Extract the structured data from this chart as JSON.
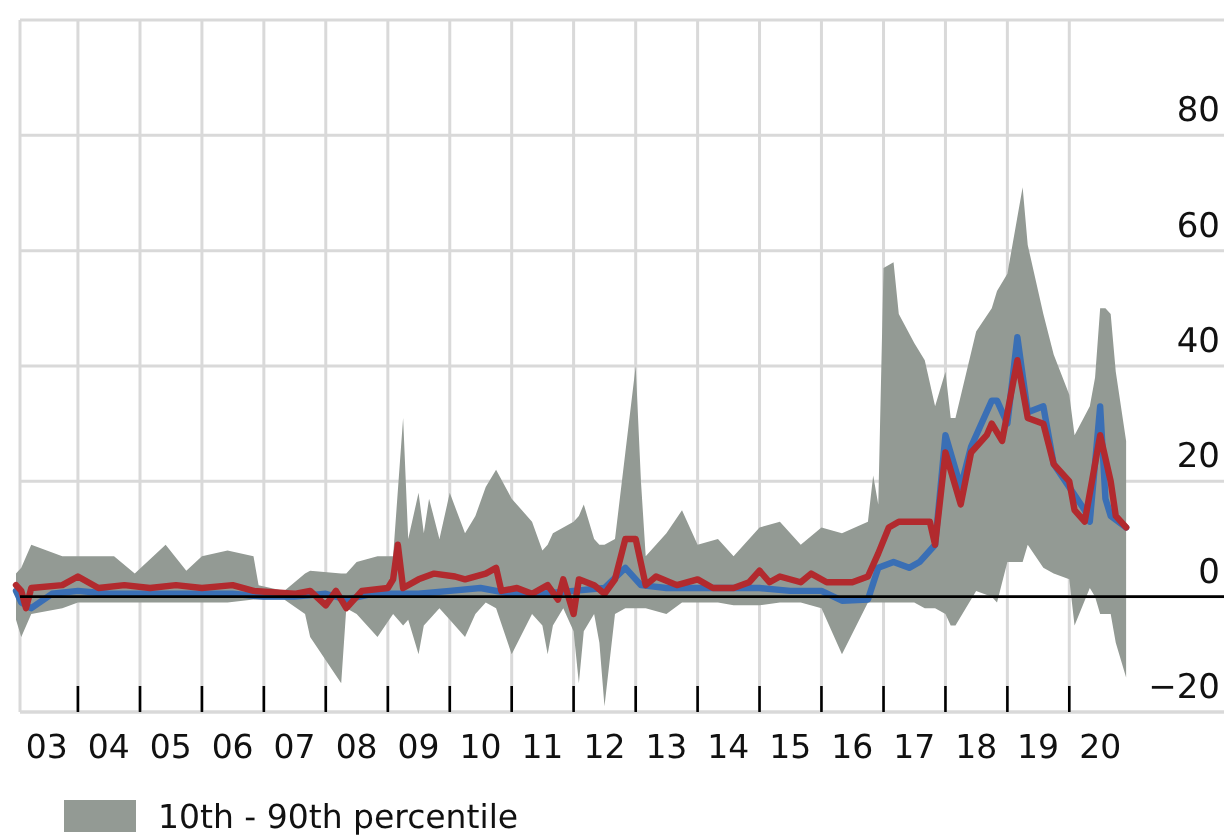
{
  "chart_data": {
    "type": "line",
    "xlim": [
      "2003-01",
      "2022-07"
    ],
    "ylim": [
      -20,
      100
    ],
    "xticks": [
      {
        "value": "2003-07",
        "label": "03"
      },
      {
        "value": "2004-01",
        "label": null
      },
      {
        "value": "2004-07",
        "label": "04"
      },
      {
        "value": "2005-01",
        "label": null
      },
      {
        "value": "2005-07",
        "label": "05"
      },
      {
        "value": "2006-01",
        "label": null
      },
      {
        "value": "2006-07",
        "label": "06"
      },
      {
        "value": "2007-01",
        "label": null
      },
      {
        "value": "2007-07",
        "label": "07"
      },
      {
        "value": "2008-01",
        "label": null
      },
      {
        "value": "2008-07",
        "label": "08"
      },
      {
        "value": "2009-01",
        "label": null
      },
      {
        "value": "2009-07",
        "label": "09"
      },
      {
        "value": "2010-01",
        "label": null
      },
      {
        "value": "2010-07",
        "label": "10"
      },
      {
        "value": "2011-01",
        "label": null
      },
      {
        "value": "2011-07",
        "label": "11"
      },
      {
        "value": "2012-01",
        "label": null
      },
      {
        "value": "2012-07",
        "label": "12"
      },
      {
        "value": "2013-01",
        "label": null
      },
      {
        "value": "2013-07",
        "label": "13"
      },
      {
        "value": "2014-01",
        "label": null
      },
      {
        "value": "2014-07",
        "label": "14"
      },
      {
        "value": "2015-01",
        "label": null
      },
      {
        "value": "2015-07",
        "label": "15"
      },
      {
        "value": "2016-01",
        "label": null
      },
      {
        "value": "2016-07",
        "label": "16"
      },
      {
        "value": "2017-01",
        "label": null
      },
      {
        "value": "2017-07",
        "label": "17"
      },
      {
        "value": "2018-01",
        "label": null
      },
      {
        "value": "2018-07",
        "label": "18"
      },
      {
        "value": "2019-01",
        "label": null
      },
      {
        "value": "2019-07",
        "label": "19"
      },
      {
        "value": "2020-01",
        "label": null
      },
      {
        "value": "2020-07",
        "label": "20"
      }
    ],
    "yticks": [
      {
        "value": -20,
        "label": "−20"
      },
      0,
      20,
      40,
      60,
      80
    ],
    "grid": true,
    "legend": "bottom",
    "line_style": "solid",
    "ref_lines": [
      {
        "axis": "y",
        "value": 0,
        "color": "#000000"
      }
    ],
    "series": [
      {
        "name": "10th - 90th percentile",
        "values": [
          null,
          null,
          null,
          null,
          null,
          null,
          null,
          null,
          null,
          null,
          null,
          null,
          null,
          null,
          null,
          null,
          null,
          null,
          null,
          null,
          null,
          null,
          null,
          null,
          null,
          null,
          null,
          null,
          null,
          null,
          null,
          null,
          null,
          null,
          null,
          null,
          null,
          null,
          null,
          null,
          null,
          null,
          null,
          null,
          null,
          null,
          null,
          null,
          null,
          null,
          null,
          null,
          null,
          null,
          null,
          null,
          null,
          null,
          null,
          null,
          null,
          null,
          null,
          null,
          null,
          null,
          null,
          null,
          null,
          null,
          null,
          null,
          null,
          null,
          null,
          null,
          null,
          null,
          null,
          null,
          null,
          null,
          null,
          null,
          null,
          null,
          null,
          null,
          null
        ],
        "color": "#939a94",
        "x": [
          "2003-01",
          "2003-02",
          "2003-04",
          "2003-10",
          "2004-01",
          "2004-05",
          "2004-08",
          "2004-12",
          "2005-06",
          "2005-10",
          "2006-01",
          "2006-06",
          "2006-11",
          "2006-12",
          "2007-05",
          "2007-09",
          "2007-10",
          "2008-04",
          "2008-05",
          "2008-07",
          "2008-11",
          "2009-02",
          "2009-04",
          "2009-05",
          "2009-07",
          "2009-08",
          "2009-09",
          "2009-11",
          "2010-01",
          "2010-04",
          "2010-06",
          "2010-08",
          "2010-10",
          "2011-01",
          "2011-05",
          "2011-07",
          "2011-08",
          "2011-09",
          "2011-11",
          "2012-01",
          "2012-02",
          "2012-03",
          "2012-05",
          "2012-06",
          "2012-07",
          "2012-09",
          "2012-11",
          "2013-01",
          "2013-02",
          "2013-03",
          "2013-07",
          "2013-10",
          "2014-01",
          "2014-05",
          "2014-08",
          "2015-01",
          "2015-05",
          "2015-09",
          "2016-01",
          "2016-05",
          "2016-10",
          "2016-11",
          "2016-12",
          "2017-01",
          "2017-03",
          "2017-04",
          "2017-07",
          "2017-09",
          "2017-11",
          "2018-01",
          "2018-02",
          "2018-03",
          "2018-07",
          "2018-10",
          "2018-11",
          "2019-01",
          "2019-04",
          "2019-05",
          "2019-08",
          "2019-10",
          "2020-01",
          "2020-02",
          "2020-05",
          "2020-06",
          "2020-07",
          "2020-08",
          "2020-09",
          "2020-10",
          "2020-12"
        ],
        "upper": [
          4,
          5,
          9,
          7,
          7,
          7,
          7,
          4,
          9,
          4.5,
          7,
          8,
          7,
          2,
          1,
          4,
          4.5,
          4,
          4,
          6,
          7,
          7,
          31,
          10,
          18,
          11,
          17,
          10,
          18,
          11,
          14,
          19,
          22,
          17,
          13,
          8,
          9,
          11,
          12,
          13,
          14,
          16,
          10,
          9,
          9,
          10,
          25,
          40,
          20,
          7,
          11,
          15,
          9,
          10,
          7,
          12,
          13,
          9,
          12,
          11,
          13,
          21,
          16,
          57,
          58,
          49,
          44,
          41,
          33,
          39,
          31,
          31,
          46,
          50,
          53,
          56,
          71,
          61,
          49,
          42,
          35,
          28,
          33,
          38,
          50,
          50,
          49,
          39,
          27
        ],
        "lower": [
          -4,
          -7,
          -3,
          -2,
          -1,
          -1,
          -1,
          -1,
          -1,
          -1,
          -1,
          -1,
          -0.5,
          -0.5,
          -0.5,
          -3,
          -7,
          -15,
          -2,
          -3,
          -7,
          -3,
          -5,
          -4,
          -10,
          -5,
          -4,
          -2,
          -4,
          -7,
          -3,
          -1,
          -2,
          -10,
          -3,
          -5,
          -10,
          -5,
          -2,
          -6,
          -15,
          -6,
          -3,
          -8,
          -19,
          -3,
          -2,
          -2,
          -2,
          -2,
          -3,
          -1,
          -1,
          -1,
          -1.5,
          -1.5,
          -1,
          -1,
          -2,
          -10,
          -1,
          -1,
          -1,
          -1,
          -1,
          -1,
          -1,
          -2,
          -2,
          -3,
          -5,
          -5,
          1,
          0,
          -1,
          6,
          6,
          9,
          5,
          4,
          3,
          -5,
          1.5,
          0,
          -3,
          -3,
          -3,
          -8,
          -14
        ]
      },
      {
        "color": "#3a6fb5",
        "x": [
          "2003-01",
          "2003-02",
          "2003-04",
          "2003-08",
          "2004-01",
          "2004-07",
          "2005-01",
          "2005-07",
          "2006-01",
          "2006-07",
          "2007-01",
          "2007-07",
          "2008-01",
          "2008-05",
          "2008-10",
          "2009-07",
          "2010-01",
          "2010-07",
          "2011-01",
          "2011-07",
          "2012-01",
          "2012-07",
          "2012-11",
          "2013-02",
          "2013-07",
          "2014-01",
          "2014-07",
          "2015-01",
          "2015-07",
          "2016-01",
          "2016-05",
          "2016-10",
          "2016-12",
          "2017-03",
          "2017-06",
          "2017-08",
          "2017-11",
          "2018-01",
          "2018-04",
          "2018-06",
          "2018-10",
          "2018-11",
          "2019-01",
          "2019-03",
          "2019-05",
          "2019-08",
          "2019-10",
          "2020-01",
          "2020-04",
          "2020-05",
          "2020-07",
          "2020-08",
          "2020-09",
          "2020-12"
        ],
        "values": [
          1,
          -1,
          -2,
          0.5,
          1,
          0.5,
          0.5,
          0.5,
          0.5,
          0.5,
          0,
          0,
          0.5,
          -0.5,
          0.5,
          0.5,
          1,
          1.5,
          0.5,
          0.5,
          1,
          1.5,
          5,
          2,
          1.5,
          1.5,
          1.5,
          1.5,
          1,
          1,
          -0.7,
          -0.5,
          5,
          6,
          5,
          6,
          9,
          28,
          19,
          26,
          34,
          34,
          30,
          45,
          32,
          33,
          23,
          19,
          15,
          13,
          33,
          17,
          14,
          12
        ]
      },
      {
        "color": "#b22a2e",
        "x": [
          "2003-01",
          "2003-02",
          "2003-03",
          "2003-04",
          "2003-10",
          "2004-01",
          "2004-05",
          "2004-10",
          "2005-03",
          "2005-08",
          "2006-01",
          "2006-07",
          "2006-11",
          "2007-07",
          "2007-10",
          "2008-01",
          "2008-03",
          "2008-05",
          "2008-08",
          "2009-01",
          "2009-02",
          "2009-03",
          "2009-04",
          "2009-07",
          "2009-10",
          "2010-02",
          "2010-04",
          "2010-08",
          "2010-10",
          "2010-11",
          "2011-02",
          "2011-05",
          "2011-08",
          "2011-10",
          "2011-11",
          "2012-01",
          "2012-02",
          "2012-05",
          "2012-07",
          "2012-09",
          "2012-11",
          "2013-01",
          "2013-03",
          "2013-05",
          "2013-09",
          "2014-01",
          "2014-04",
          "2014-08",
          "2014-11",
          "2015-01",
          "2015-03",
          "2015-05",
          "2015-09",
          "2015-11",
          "2016-02",
          "2016-05",
          "2016-07",
          "2016-10",
          "2016-12",
          "2017-02",
          "2017-04",
          "2017-06",
          "2017-10",
          "2017-11",
          "2018-01",
          "2018-04",
          "2018-06",
          "2018-09",
          "2018-10",
          "2018-12",
          "2019-03",
          "2019-05",
          "2019-08",
          "2019-10",
          "2020-01",
          "2020-02",
          "2020-04",
          "2020-07",
          "2020-09",
          "2020-10",
          "2020-12"
        ],
        "values": [
          2,
          1,
          -2,
          1.5,
          2,
          3.5,
          1.5,
          2,
          1.5,
          2,
          1.5,
          2,
          1,
          0.5,
          1,
          -1.5,
          1,
          -2,
          1,
          1.5,
          3,
          9,
          1.5,
          3,
          4,
          3.5,
          3,
          4,
          5,
          1,
          1.5,
          0.5,
          2,
          -0.5,
          3,
          -3,
          3,
          2,
          0.5,
          3,
          10,
          10,
          2,
          3.5,
          2,
          3,
          1.5,
          1.5,
          2.5,
          4.5,
          2.5,
          3.5,
          2.5,
          4,
          2.5,
          2.5,
          2.5,
          3.5,
          7.5,
          12,
          13,
          13,
          13,
          9,
          25,
          16,
          25,
          28,
          30,
          27,
          41,
          31,
          30,
          23,
          20,
          15,
          13,
          28,
          20,
          14,
          12
        ]
      }
    ]
  }
}
